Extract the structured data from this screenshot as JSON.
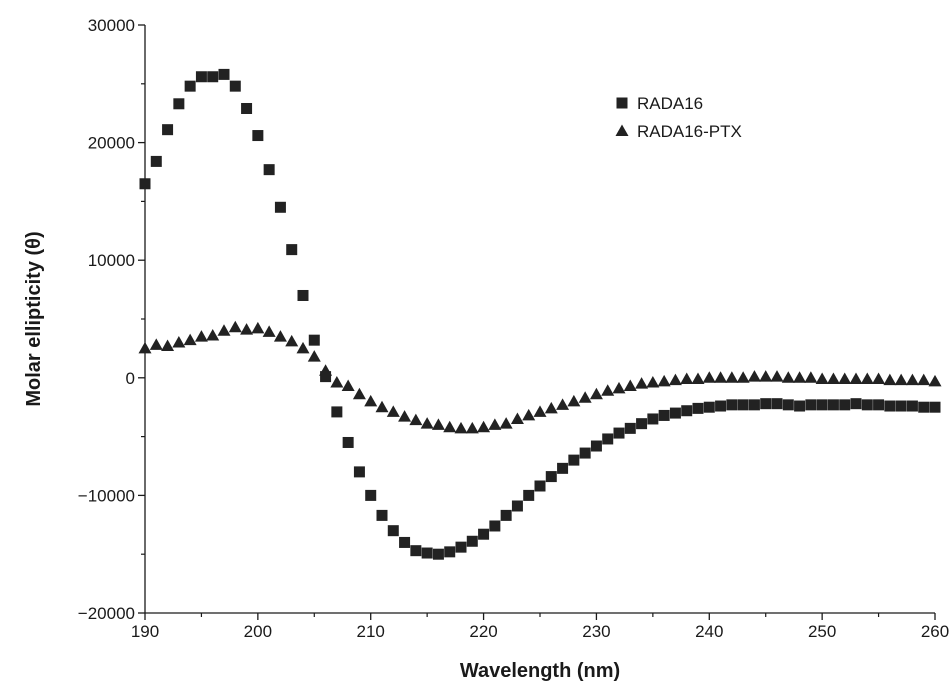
{
  "chart_data": {
    "type": "scatter",
    "xlabel": "Wavelength (nm)",
    "ylabel": "Molar ellipticity (θ)",
    "xlim": [
      190,
      260
    ],
    "ylim": [
      -20000,
      30000
    ],
    "xticks": [
      190,
      200,
      210,
      220,
      230,
      240,
      250,
      260
    ],
    "yticks": [
      -20000,
      -10000,
      0,
      10000,
      20000,
      30000
    ],
    "ytick_labels": [
      "−20000",
      "−10000",
      "0",
      "10000",
      "20000",
      "30000"
    ],
    "legend_position": "top-right",
    "grid": false,
    "series": [
      {
        "name": "RADA16",
        "marker": "square",
        "color": "#222222",
        "x": [
          190,
          191,
          192,
          193,
          194,
          195,
          196,
          197,
          198,
          199,
          200,
          201,
          202,
          203,
          204,
          205,
          206,
          207,
          208,
          209,
          210,
          211,
          212,
          213,
          214,
          215,
          216,
          217,
          218,
          219,
          220,
          221,
          222,
          223,
          224,
          225,
          226,
          227,
          228,
          229,
          230,
          231,
          232,
          233,
          234,
          235,
          236,
          237,
          238,
          239,
          240,
          241,
          242,
          243,
          244,
          245,
          246,
          247,
          248,
          249,
          250,
          251,
          252,
          253,
          254,
          255,
          256,
          257,
          258,
          259,
          260
        ],
        "y": [
          16500,
          18400,
          21100,
          23300,
          24800,
          25600,
          25600,
          25800,
          24800,
          22900,
          20600,
          17700,
          14500,
          10900,
          7000,
          3200,
          100,
          -2900,
          -5500,
          -8000,
          -10000,
          -11700,
          -13000,
          -14000,
          -14700,
          -14900,
          -15000,
          -14800,
          -14400,
          -13900,
          -13300,
          -12600,
          -11700,
          -10900,
          -10000,
          -9200,
          -8400,
          -7700,
          -7000,
          -6400,
          -5800,
          -5200,
          -4700,
          -4300,
          -3900,
          -3500,
          -3200,
          -3000,
          -2800,
          -2600,
          -2500,
          -2400,
          -2300,
          -2300,
          -2300,
          -2200,
          -2200,
          -2300,
          -2400,
          -2300,
          -2300,
          -2300,
          -2300,
          -2200,
          -2300,
          -2300,
          -2400,
          -2400,
          -2400,
          -2500,
          -2500
        ]
      },
      {
        "name": "RADA16-PTX",
        "marker": "triangle",
        "color": "#222222",
        "x": [
          190,
          191,
          192,
          193,
          194,
          195,
          196,
          197,
          198,
          199,
          200,
          201,
          202,
          203,
          204,
          205,
          206,
          207,
          208,
          209,
          210,
          211,
          212,
          213,
          214,
          215,
          216,
          217,
          218,
          219,
          220,
          221,
          222,
          223,
          224,
          225,
          226,
          227,
          228,
          229,
          230,
          231,
          232,
          233,
          234,
          235,
          236,
          237,
          238,
          239,
          240,
          241,
          242,
          243,
          244,
          245,
          246,
          247,
          248,
          249,
          250,
          251,
          252,
          253,
          254,
          255,
          256,
          257,
          258,
          259,
          260
        ],
        "y": [
          2500,
          2800,
          2700,
          3000,
          3200,
          3500,
          3600,
          4000,
          4300,
          4100,
          4200,
          3900,
          3500,
          3100,
          2500,
          1800,
          600,
          -400,
          -700,
          -1400,
          -2000,
          -2500,
          -2900,
          -3300,
          -3600,
          -3900,
          -4000,
          -4200,
          -4300,
          -4300,
          -4200,
          -4000,
          -3900,
          -3500,
          -3200,
          -2900,
          -2600,
          -2300,
          -2000,
          -1700,
          -1400,
          -1100,
          -900,
          -700,
          -500,
          -400,
          -300,
          -200,
          -100,
          -100,
          0,
          0,
          0,
          0,
          100,
          100,
          100,
          0,
          0,
          0,
          -100,
          -100,
          -100,
          -100,
          -100,
          -100,
          -200,
          -200,
          -200,
          -200,
          -300
        ]
      }
    ]
  }
}
